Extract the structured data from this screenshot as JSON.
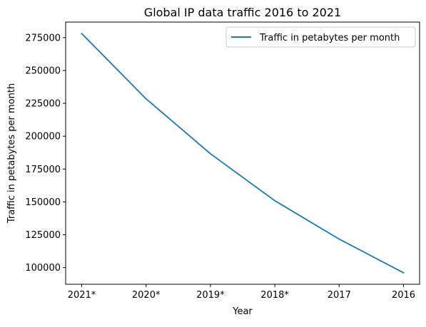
{
  "chart_data": {
    "type": "line",
    "title": "Global IP data traffic 2016 to 2021",
    "xlabel": "Year",
    "ylabel": "Traffic in petabytes per month",
    "categories": [
      "2021*",
      "2020*",
      "2019*",
      "2018*",
      "2017",
      "2016"
    ],
    "series": [
      {
        "name": "Traffic in petabytes per month",
        "values": [
          278108,
          228416,
          186639,
          150910,
          121694,
          96054
        ],
        "color": "#1f77b4"
      }
    ],
    "yticks": [
      100000,
      125000,
      150000,
      175000,
      200000,
      225000,
      250000,
      275000
    ],
    "ylim": [
      87352,
      286810
    ],
    "grid": false,
    "legend_position": "top-right"
  }
}
